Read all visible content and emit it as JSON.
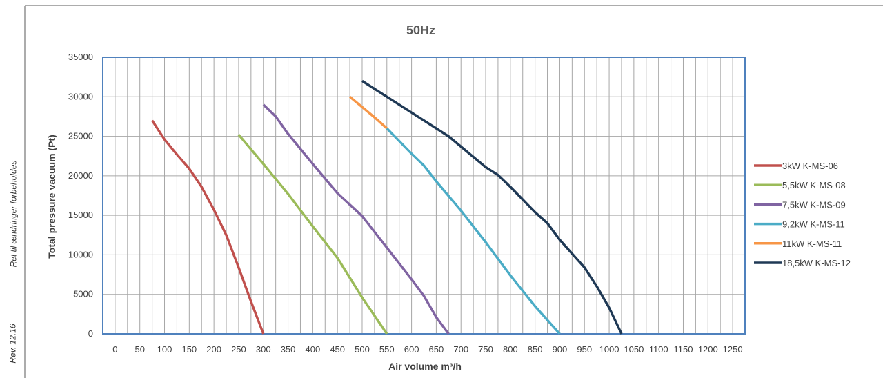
{
  "side_notes": {
    "revision": "Rev. 12.16",
    "disclaimer": "Ret til ændringer forbeholdes"
  },
  "colors": {
    "frame": "#4f81bd",
    "grid": "#a6a6a6"
  },
  "chart_data": {
    "type": "line",
    "title": "50Hz",
    "xlabel": "Air volume m³/h",
    "ylabel": "Total pressure vacuum (Pt)",
    "xlim": [
      -25,
      1275
    ],
    "ylim": [
      0,
      35000
    ],
    "x_ticks": [
      0,
      50,
      100,
      150,
      200,
      250,
      300,
      350,
      400,
      450,
      500,
      550,
      600,
      650,
      700,
      750,
      800,
      850,
      900,
      950,
      1000,
      1050,
      1100,
      1150,
      1200,
      1250
    ],
    "y_ticks": [
      0,
      5000,
      10000,
      15000,
      20000,
      25000,
      30000,
      35000
    ],
    "x_grid_step": 25,
    "y_grid_step": 5000,
    "grid": true,
    "legend_position": "right",
    "series": [
      {
        "name": "3kW K-MS-06",
        "color": "#c0504d",
        "points": [
          [
            75,
            27000
          ],
          [
            100,
            24600
          ],
          [
            125,
            22700
          ],
          [
            150,
            20900
          ],
          [
            175,
            18600
          ],
          [
            200,
            15700
          ],
          [
            225,
            12500
          ],
          [
            250,
            8400
          ],
          [
            275,
            4100
          ],
          [
            300,
            0
          ]
        ]
      },
      {
        "name": "5,5kW K-MS-08",
        "color": "#9bbb59",
        "points": [
          [
            250,
            25200
          ],
          [
            300,
            21500
          ],
          [
            350,
            17700
          ],
          [
            400,
            13600
          ],
          [
            450,
            9600
          ],
          [
            500,
            4600
          ],
          [
            550,
            0
          ]
        ]
      },
      {
        "name": "7,5kW K-MS-09",
        "color": "#8064a2",
        "points": [
          [
            300,
            29000
          ],
          [
            325,
            27500
          ],
          [
            350,
            25300
          ],
          [
            400,
            21500
          ],
          [
            450,
            17800
          ],
          [
            500,
            14900
          ],
          [
            550,
            10900
          ],
          [
            600,
            6900
          ],
          [
            625,
            4800
          ],
          [
            650,
            2100
          ],
          [
            675,
            0
          ]
        ]
      },
      {
        "name": "9,2kW K-MS-11",
        "color": "#4bacc6",
        "points": [
          [
            550,
            26000
          ],
          [
            600,
            22800
          ],
          [
            625,
            21300
          ],
          [
            650,
            19300
          ],
          [
            700,
            15600
          ],
          [
            750,
            11600
          ],
          [
            800,
            7400
          ],
          [
            850,
            3500
          ],
          [
            900,
            0
          ]
        ]
      },
      {
        "name": "11kW K-MS-11",
        "color": "#f79646",
        "points": [
          [
            475,
            30000
          ],
          [
            500,
            28700
          ],
          [
            525,
            27400
          ],
          [
            550,
            26000
          ]
        ]
      },
      {
        "name": "18,5kW K-MS-12",
        "color": "#1f3955",
        "points": [
          [
            500,
            32000
          ],
          [
            550,
            30000
          ],
          [
            600,
            28000
          ],
          [
            650,
            26000
          ],
          [
            675,
            25000
          ],
          [
            700,
            23700
          ],
          [
            750,
            21100
          ],
          [
            775,
            20100
          ],
          [
            800,
            18600
          ],
          [
            850,
            15400
          ],
          [
            875,
            14000
          ],
          [
            900,
            11900
          ],
          [
            950,
            8400
          ],
          [
            975,
            6000
          ],
          [
            1000,
            3300
          ],
          [
            1025,
            0
          ]
        ]
      }
    ]
  }
}
